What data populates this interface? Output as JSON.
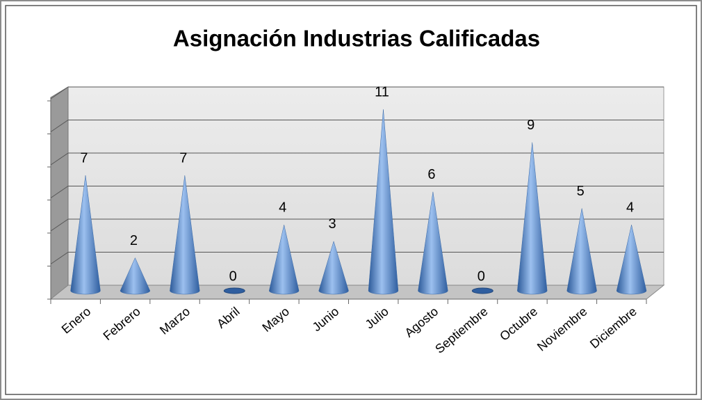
{
  "chart_data": {
    "type": "cone",
    "title": "Asignación Industrias Calificadas",
    "categories": [
      "Enero",
      "Febrero",
      "Marzo",
      "Abril",
      "Mayo",
      "Junio",
      "Julio",
      "Agosto",
      "Septiembre",
      "Octubre",
      "Noviembre",
      "Diciembre"
    ],
    "values": [
      7,
      2,
      7,
      0,
      4,
      3,
      11,
      6,
      0,
      9,
      5,
      4
    ],
    "color": "#4f81bd",
    "ylim": [
      0,
      12
    ],
    "yticks": [
      0,
      2,
      4,
      6,
      8,
      10,
      12
    ],
    "grid": true
  }
}
